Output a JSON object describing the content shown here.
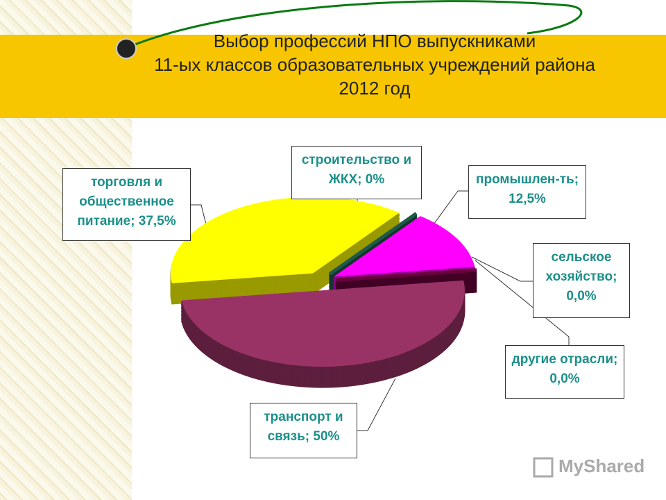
{
  "chart_data": {
    "type": "pie",
    "title": [
      "Выбор профессий НПО выпускниками",
      "11-ых классов  образовательных учреждений района",
      "2012 год"
    ],
    "categories": [
      "торговля и общественное питание;",
      "строительство и ЖКХ;",
      "промышлен-ть;",
      "сельское хозяйство;",
      "другие отрасли;",
      "транспорт и связь;"
    ],
    "values": [
      37.5,
      0,
      12.5,
      0,
      0,
      50
    ],
    "value_labels": [
      "37,5%",
      "0%",
      "12,5%",
      "0,0%",
      "0,0%",
      "50%"
    ],
    "colors": [
      "#ffff00",
      "#1f5a48",
      "#ff00ff",
      "#a00000",
      "#6a0040",
      "#993366"
    ],
    "watermark": "MyShared"
  }
}
